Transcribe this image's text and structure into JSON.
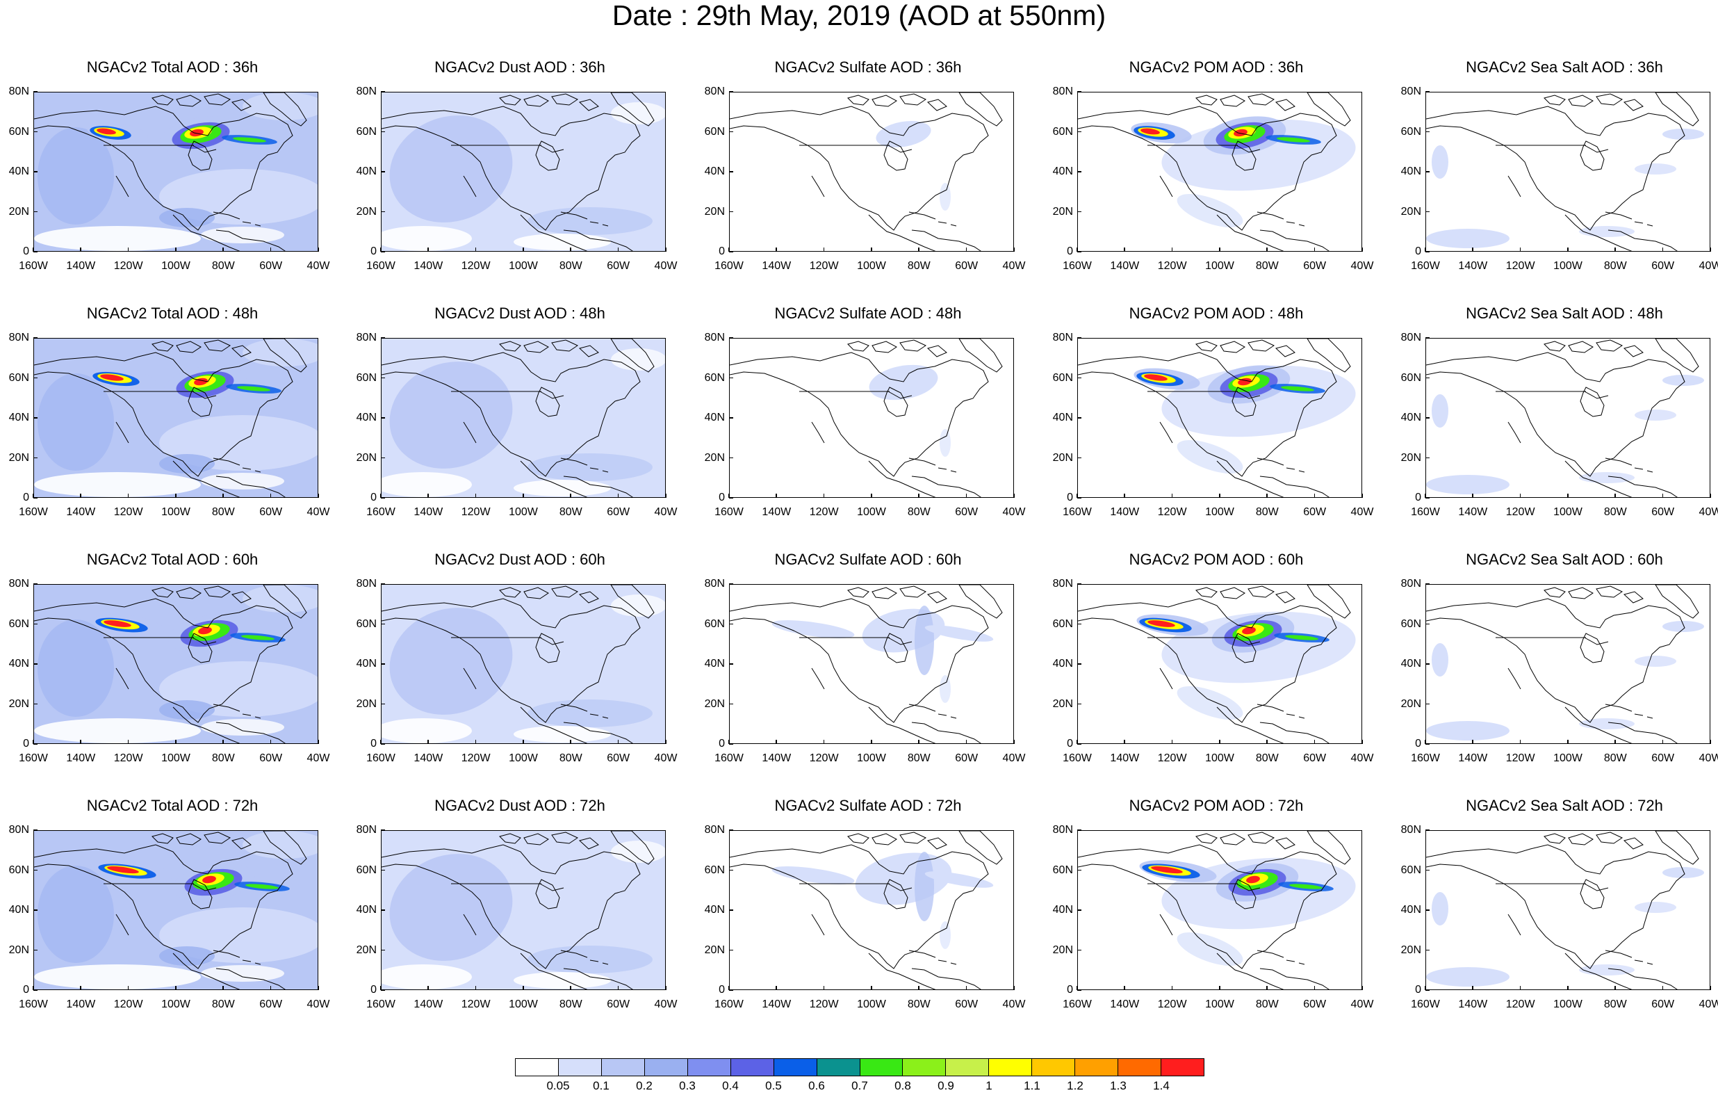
{
  "title": "Date : 29th May, 2019 (AOD at 550nm)",
  "axes": {
    "lat_labels": [
      "80N",
      "60N",
      "40N",
      "20N",
      "0"
    ],
    "lon_labels": [
      "160W",
      "140W",
      "120W",
      "100W",
      "80W",
      "60W",
      "40W"
    ]
  },
  "panels": [
    {
      "title": "NGACv2 Total AOD : 36h",
      "product": "total",
      "hour": 36
    },
    {
      "title": "NGACv2 Dust AOD : 36h",
      "product": "dust",
      "hour": 36
    },
    {
      "title": "NGACv2 Sulfate AOD : 36h",
      "product": "sulfate",
      "hour": 36
    },
    {
      "title": "NGACv2 POM AOD : 36h",
      "product": "pom",
      "hour": 36
    },
    {
      "title": "NGACv2 Sea Salt AOD : 36h",
      "product": "seasalt",
      "hour": 36
    },
    {
      "title": "NGACv2 Total AOD : 48h",
      "product": "total",
      "hour": 48
    },
    {
      "title": "NGACv2 Dust AOD : 48h",
      "product": "dust",
      "hour": 48
    },
    {
      "title": "NGACv2 Sulfate AOD : 48h",
      "product": "sulfate",
      "hour": 48
    },
    {
      "title": "NGACv2 POM AOD : 48h",
      "product": "pom",
      "hour": 48
    },
    {
      "title": "NGACv2 Sea Salt AOD : 48h",
      "product": "seasalt",
      "hour": 48
    },
    {
      "title": "NGACv2 Total AOD : 60h",
      "product": "total",
      "hour": 60
    },
    {
      "title": "NGACv2 Dust AOD : 60h",
      "product": "dust",
      "hour": 60
    },
    {
      "title": "NGACv2 Sulfate AOD : 60h",
      "product": "sulfate",
      "hour": 60
    },
    {
      "title": "NGACv2 POM AOD : 60h",
      "product": "pom",
      "hour": 60
    },
    {
      "title": "NGACv2 Sea Salt AOD : 60h",
      "product": "seasalt",
      "hour": 60
    },
    {
      "title": "NGACv2 Total AOD : 72h",
      "product": "total",
      "hour": 72
    },
    {
      "title": "NGACv2 Dust AOD : 72h",
      "product": "dust",
      "hour": 72
    },
    {
      "title": "NGACv2 Sulfate AOD : 72h",
      "product": "sulfate",
      "hour": 72
    },
    {
      "title": "NGACv2 POM AOD : 72h",
      "product": "pom",
      "hour": 72
    },
    {
      "title": "NGACv2 Sea Salt  AOD : 72h",
      "product": "seasalt",
      "hour": 72
    }
  ],
  "colorbar": {
    "colors": [
      "#ffffff",
      "#d6dffb",
      "#b8c7f5",
      "#9ab0f0",
      "#7f8ff0",
      "#5c62e6",
      "#0a5fe8",
      "#0b928f",
      "#39e814",
      "#8bf01a",
      "#c7f04a",
      "#ffff00",
      "#ffc800",
      "#ffa000",
      "#ff6a00",
      "#ff1e1e"
    ],
    "labels": [
      "0.05",
      "0.1",
      "0.2",
      "0.3",
      "0.4",
      "0.5",
      "0.6",
      "0.7",
      "0.8",
      "0.9",
      "1",
      "1.1",
      "1.2",
      "1.3",
      "1.4"
    ]
  }
}
